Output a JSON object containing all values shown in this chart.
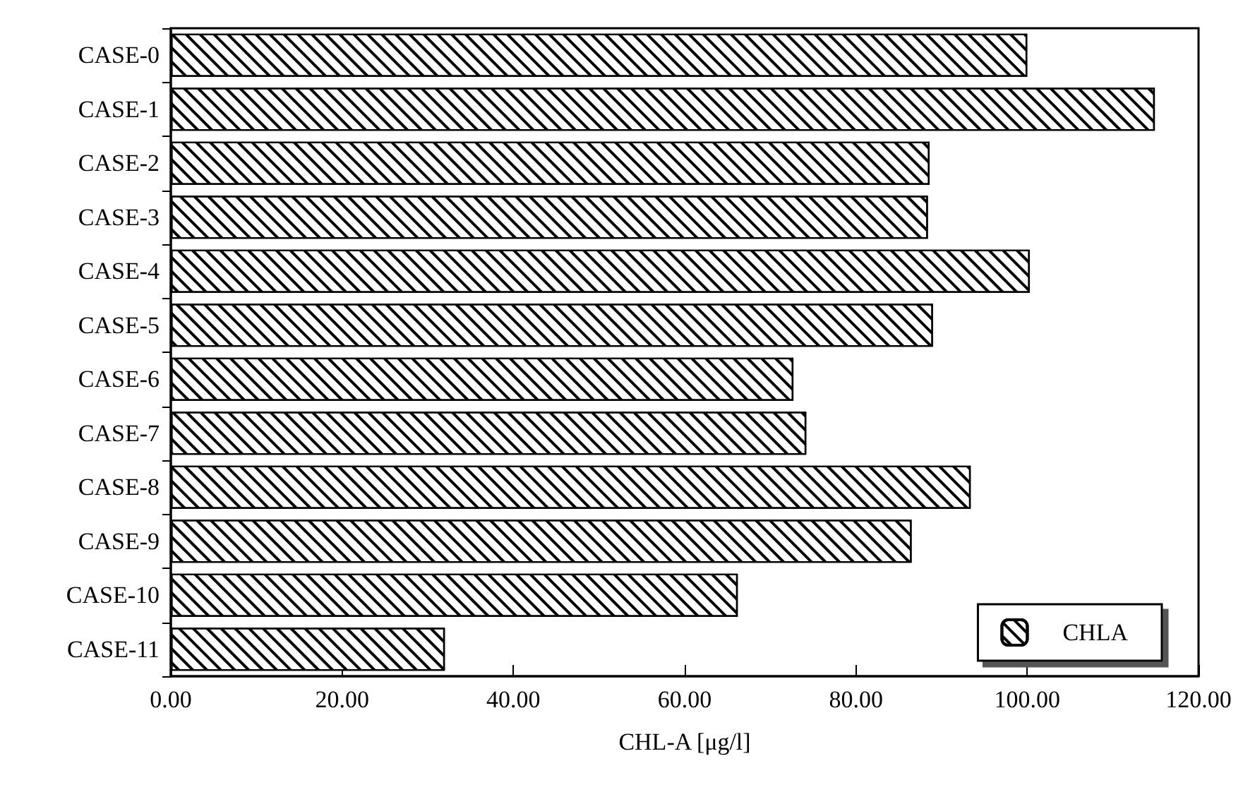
{
  "chart_data": {
    "type": "bar",
    "orientation": "horizontal",
    "xlabel": "CHL-A [μg/l]",
    "categories": [
      "CASE-0",
      "CASE-1",
      "CASE-2",
      "CASE-3",
      "CASE-4",
      "CASE-5",
      "CASE-6",
      "CASE-7",
      "CASE-8",
      "CASE-9",
      "CASE-10",
      "CASE-11"
    ],
    "series": [
      {
        "name": "CHLA",
        "color": "#ffffff",
        "values": [
          100.0,
          114.9,
          88.6,
          88.4,
          100.3,
          89.0,
          72.7,
          74.2,
          93.4,
          86.5,
          66.2,
          32.0
        ]
      }
    ],
    "xlim": [
      0,
      120
    ],
    "xticks": [
      {
        "value": 0,
        "label": "0.00"
      },
      {
        "value": 20,
        "label": "20.00"
      },
      {
        "value": 40,
        "label": "40.00"
      },
      {
        "value": 60,
        "label": "60.00"
      },
      {
        "value": 80,
        "label": "80.00"
      },
      {
        "value": 100,
        "label": "100.00"
      },
      {
        "value": 120,
        "label": "120.00"
      }
    ],
    "legend": "bottom right",
    "grid": false
  }
}
